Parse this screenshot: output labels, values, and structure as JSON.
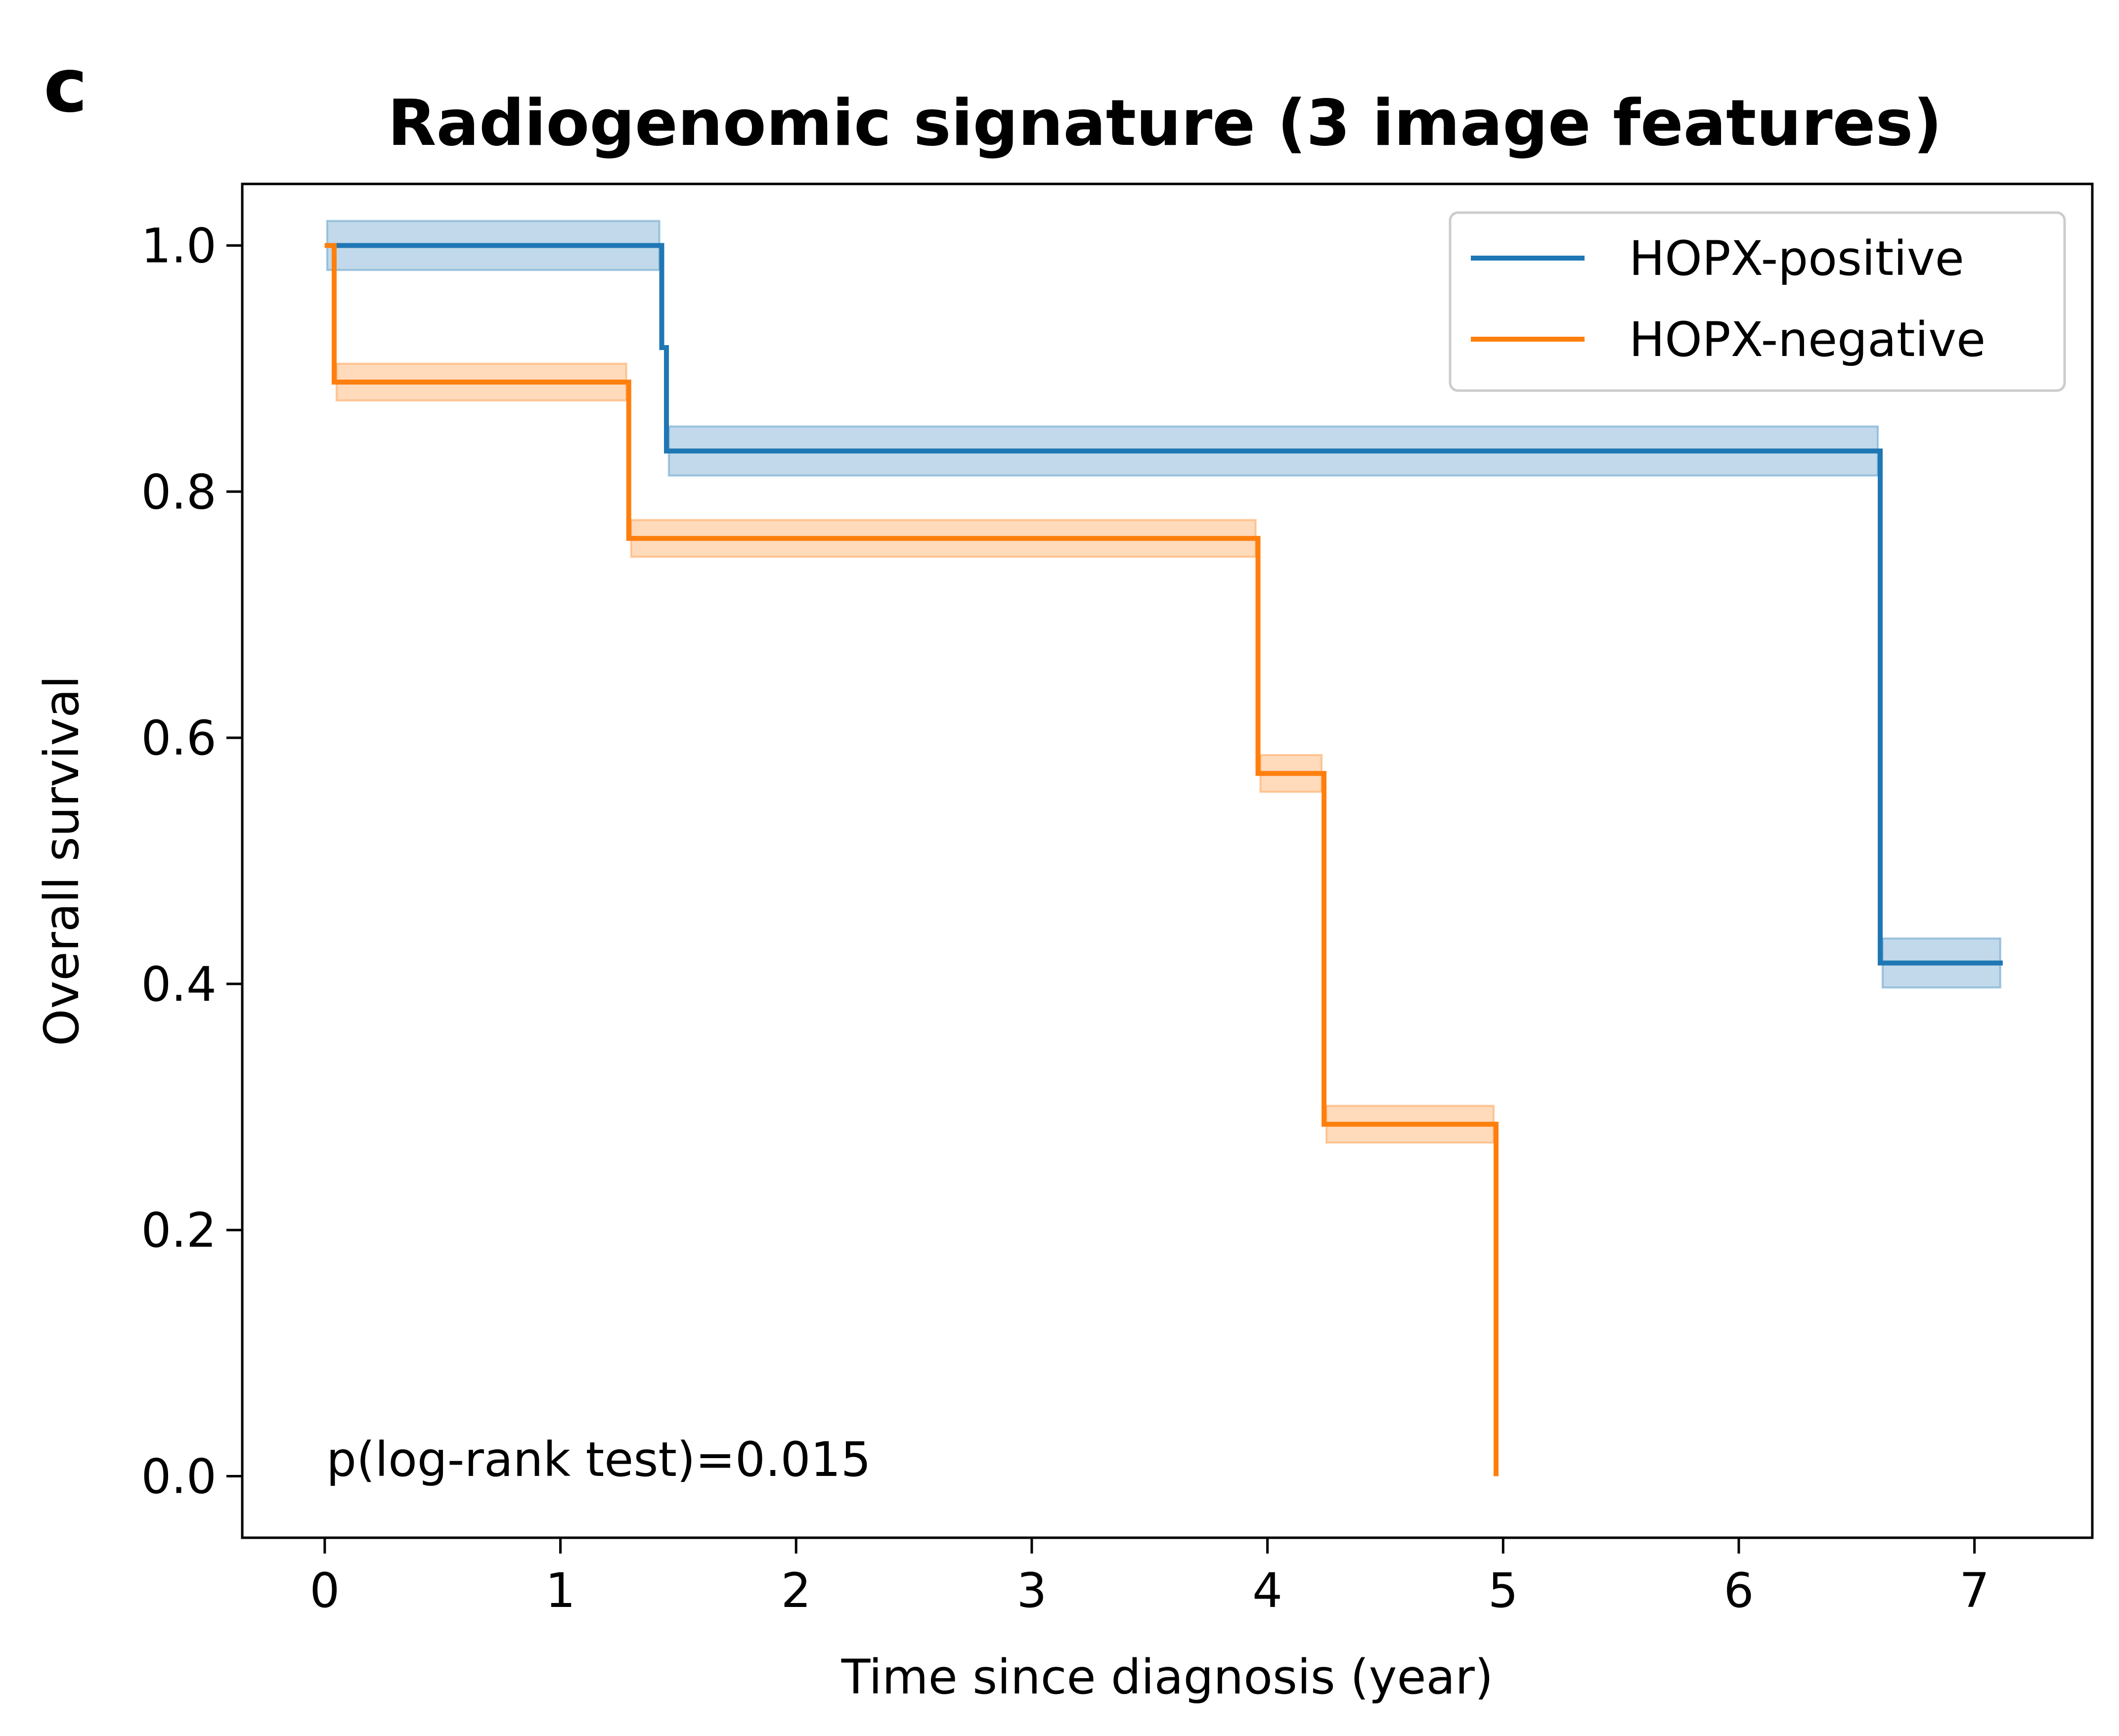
{
  "panel_letter": "c",
  "chart_data": {
    "type": "line",
    "subtype": "kaplan-meier step survival curves with confidence bands",
    "title": "Radiogenomic signature (3 image features)",
    "xlabel": "Time since diagnosis (year)",
    "ylabel": "Overall survival",
    "xlim": [
      -0.35,
      7.5
    ],
    "ylim": [
      -0.05,
      1.05
    ],
    "xticks": [
      0,
      1,
      2,
      3,
      4,
      5,
      6,
      7
    ],
    "xtick_labels": [
      "0",
      "1",
      "2",
      "3",
      "4",
      "5",
      "6",
      "7"
    ],
    "yticks": [
      0.0,
      0.2,
      0.4,
      0.6,
      0.8,
      1.0
    ],
    "ytick_labels": [
      "0.0",
      "0.2",
      "0.4",
      "0.6",
      "0.8",
      "1.0"
    ],
    "grid": false,
    "legend_position": "top-right",
    "annotation": "p(log-rank test)=0.015",
    "series": [
      {
        "name": "HOPX-positive",
        "color": "#1f77b4",
        "steps": [
          [
            0.0,
            1.0
          ],
          [
            1.43,
            0.917
          ],
          [
            1.45,
            0.833
          ],
          [
            6.6,
            0.417
          ],
          [
            7.12,
            0.417
          ]
        ],
        "band_halfwidth": 0.02
      },
      {
        "name": "HOPX-negative",
        "color": "#ff7f0e",
        "steps": [
          [
            0.0,
            1.0
          ],
          [
            0.04,
            0.889
          ],
          [
            1.29,
            0.762
          ],
          [
            3.96,
            0.571
          ],
          [
            4.24,
            0.286
          ],
          [
            4.97,
            0.0
          ]
        ],
        "band_halfwidth": 0.015
      }
    ]
  }
}
